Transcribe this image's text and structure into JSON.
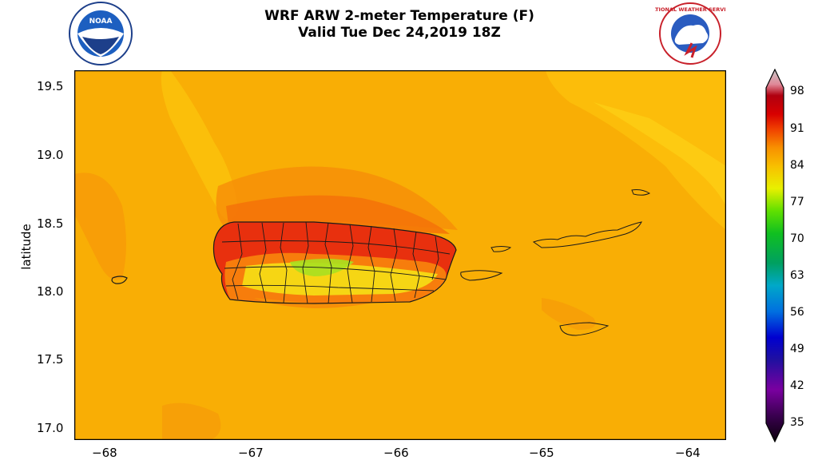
{
  "header": {
    "title_line1": "WRF ARW 2-meter Temperature (F)",
    "title_line2": "Valid Tue Dec 24,2019 18Z",
    "noaa_logo_text": "NOAA",
    "nws_logo_text": "NATIONAL WEATHER SERVICE"
  },
  "map": {
    "ylabel": "latitude",
    "y_ticks": [
      "19.5",
      "19.0",
      "18.5",
      "18.0",
      "17.5",
      "17.0"
    ],
    "x_ticks": [
      "−68",
      "−67",
      "−66",
      "−65",
      "−64"
    ],
    "background_color": "#f9ae05"
  },
  "colorbar": {
    "ticks": [
      "98",
      "91",
      "84",
      "77",
      "70",
      "63",
      "56",
      "49",
      "42",
      "35"
    ],
    "colors": [
      "#1a0010",
      "#3a0050",
      "#7a00a0",
      "#3020a0",
      "#0000c0",
      "#0050e0",
      "#0090e0",
      "#00b0b0",
      "#00a060",
      "#00c020",
      "#30e000",
      "#a0f000",
      "#f0f000",
      "#f8d000",
      "#f8a000",
      "#f86000",
      "#f02000",
      "#d00000",
      "#b00010",
      "#e08090",
      "#e0b0b8",
      "#c8c8c8"
    ]
  }
}
